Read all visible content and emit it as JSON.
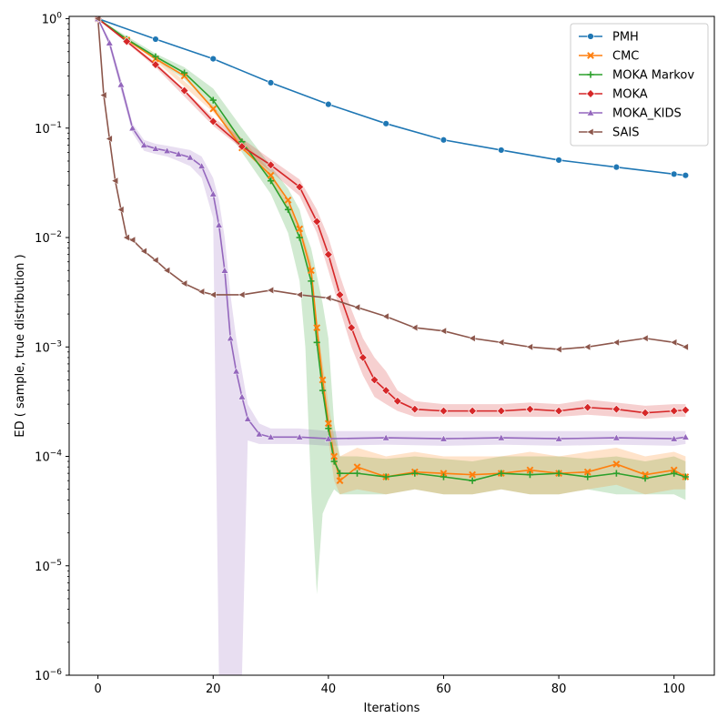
{
  "chart_data": {
    "type": "line",
    "title": "",
    "xlabel": "Iterations",
    "ylabel": "ED ( sample, true distribution )",
    "xlim": [
      -5,
      107
    ],
    "ylim": [
      1e-06,
      1.05
    ],
    "yscale": "log",
    "x_ticks": [
      0,
      20,
      40,
      60,
      80,
      100
    ],
    "y_ticks": [
      {
        "value": 1e-06,
        "base": "10",
        "exp": "−6"
      },
      {
        "value": 1e-05,
        "base": "10",
        "exp": "−5"
      },
      {
        "value": 0.0001,
        "base": "10",
        "exp": "−4"
      },
      {
        "value": 0.001,
        "base": "10",
        "exp": "−3"
      },
      {
        "value": 0.01,
        "base": "10",
        "exp": "−2"
      },
      {
        "value": 0.1,
        "base": "10",
        "exp": "−1"
      },
      {
        "value": 1,
        "base": "10",
        "exp": "0"
      }
    ],
    "grid": false,
    "legend_position": "top-right",
    "series": [
      {
        "name": "PMH",
        "color": "#1f77b4",
        "marker": "circle",
        "x": [
          0,
          10,
          20,
          30,
          40,
          50,
          60,
          70,
          80,
          90,
          100,
          102
        ],
        "y": [
          1.0,
          0.65,
          0.43,
          0.26,
          0.165,
          0.11,
          0.078,
          0.063,
          0.051,
          0.044,
          0.038,
          0.037
        ]
      },
      {
        "name": "CMC",
        "color": "#ff7f0e",
        "marker": "x",
        "x": [
          0,
          5,
          10,
          15,
          20,
          25,
          30,
          33,
          35,
          37,
          38,
          39,
          40,
          41,
          42,
          45,
          50,
          55,
          60,
          65,
          70,
          75,
          80,
          85,
          90,
          95,
          100,
          102
        ],
        "y": [
          1.0,
          0.64,
          0.43,
          0.3,
          0.15,
          0.066,
          0.037,
          0.022,
          0.012,
          0.005,
          0.0015,
          0.0005,
          0.0002,
          0.0001,
          6e-05,
          8e-05,
          6.5e-05,
          7.2e-05,
          7e-05,
          6.8e-05,
          7e-05,
          7.5e-05,
          7e-05,
          7.2e-05,
          8.5e-05,
          6.8e-05,
          7.5e-05,
          6.5e-05
        ]
      },
      {
        "name": "MOKA Markov",
        "color": "#2ca02c",
        "marker": "plus",
        "x": [
          0,
          5,
          10,
          15,
          20,
          25,
          30,
          33,
          35,
          37,
          38,
          39,
          40,
          41,
          42,
          45,
          50,
          55,
          60,
          65,
          70,
          75,
          80,
          85,
          90,
          95,
          100,
          102
        ],
        "y": [
          1.0,
          0.65,
          0.45,
          0.32,
          0.18,
          0.075,
          0.033,
          0.018,
          0.01,
          0.004,
          0.0011,
          0.0004,
          0.00018,
          9e-05,
          7e-05,
          7e-05,
          6.5e-05,
          7e-05,
          6.5e-05,
          6e-05,
          7e-05,
          6.8e-05,
          7e-05,
          6.5e-05,
          7e-05,
          6.3e-05,
          7e-05,
          6.5e-05
        ]
      },
      {
        "name": "MOKA",
        "color": "#d62728",
        "marker": "diamond",
        "x": [
          0,
          5,
          10,
          15,
          20,
          25,
          30,
          35,
          38,
          40,
          42,
          44,
          46,
          48,
          50,
          52,
          55,
          60,
          65,
          70,
          75,
          80,
          85,
          90,
          95,
          100,
          102
        ],
        "y": [
          1.0,
          0.62,
          0.38,
          0.22,
          0.115,
          0.068,
          0.046,
          0.029,
          0.014,
          0.007,
          0.003,
          0.0015,
          0.0008,
          0.0005,
          0.0004,
          0.00032,
          0.00027,
          0.00026,
          0.00026,
          0.00026,
          0.00027,
          0.00026,
          0.00028,
          0.00027,
          0.00025,
          0.00026,
          0.000265
        ]
      },
      {
        "name": "MOKA_KIDS",
        "color": "#9467bd",
        "marker": "triangle-up",
        "x": [
          0,
          2,
          4,
          6,
          8,
          10,
          12,
          14,
          16,
          18,
          20,
          21,
          22,
          23,
          24,
          25,
          26,
          28,
          30,
          35,
          40,
          50,
          60,
          70,
          80,
          90,
          100,
          102
        ],
        "y": [
          1.0,
          0.6,
          0.25,
          0.1,
          0.07,
          0.065,
          0.062,
          0.058,
          0.054,
          0.045,
          0.025,
          0.013,
          0.005,
          0.0012,
          0.0006,
          0.00035,
          0.00022,
          0.00016,
          0.00015,
          0.00015,
          0.000145,
          0.000148,
          0.000145,
          0.000148,
          0.000145,
          0.000148,
          0.000145,
          0.00015
        ]
      },
      {
        "name": "SAIS",
        "color": "#8c564b",
        "marker": "triangle-left",
        "x": [
          0,
          1,
          2,
          3,
          4,
          5,
          6,
          8,
          10,
          12,
          15,
          18,
          20,
          25,
          30,
          35,
          40,
          45,
          50,
          55,
          60,
          65,
          70,
          75,
          80,
          85,
          90,
          95,
          100,
          102
        ],
        "y": [
          1.0,
          0.2,
          0.08,
          0.033,
          0.018,
          0.01,
          0.0095,
          0.0075,
          0.0062,
          0.005,
          0.0038,
          0.0032,
          0.003,
          0.003,
          0.0033,
          0.003,
          0.0028,
          0.0023,
          0.0019,
          0.0015,
          0.0014,
          0.0012,
          0.0011,
          0.001,
          0.00095,
          0.001,
          0.0011,
          0.0012,
          0.0011,
          0.001
        ]
      }
    ],
    "bands": [
      {
        "series": "MOKA_KIDS",
        "color": "#9467bd",
        "x": [
          0,
          2,
          4,
          6,
          8,
          10,
          12,
          14,
          16,
          18,
          20,
          21,
          22,
          23,
          24,
          25,
          26,
          28,
          30,
          35,
          40,
          50,
          60,
          70,
          80,
          90,
          100,
          102
        ],
        "lower": [
          1.0,
          0.55,
          0.22,
          0.09,
          0.062,
          0.058,
          0.055,
          0.05,
          0.045,
          0.035,
          0.015,
          1e-06,
          1e-06,
          1e-06,
          1e-06,
          1e-06,
          0.00014,
          0.00013,
          0.00013,
          0.00013,
          0.000125,
          0.000128,
          0.000125,
          0.000128,
          0.000125,
          0.000128,
          0.000125,
          0.00013
        ],
        "upper": [
          1.0,
          0.65,
          0.28,
          0.11,
          0.078,
          0.072,
          0.069,
          0.066,
          0.063,
          0.055,
          0.035,
          0.022,
          0.01,
          0.003,
          0.0012,
          0.0006,
          0.0003,
          0.0002,
          0.00018,
          0.00018,
          0.00017,
          0.00017,
          0.00017,
          0.00017,
          0.00017,
          0.00017,
          0.00017,
          0.00017
        ]
      },
      {
        "series": "MOKA Markov",
        "color": "#2ca02c",
        "x": [
          0,
          10,
          15,
          20,
          25,
          30,
          33,
          35,
          36,
          37,
          38,
          39,
          40,
          41,
          42,
          45,
          50,
          55,
          60,
          65,
          70,
          75,
          80,
          85,
          90,
          95,
          100,
          102
        ],
        "lower": [
          1.0,
          0.42,
          0.28,
          0.15,
          0.06,
          0.025,
          0.011,
          0.004,
          0.001,
          5e-05,
          5.5e-06,
          3e-05,
          4e-05,
          5e-05,
          4.5e-05,
          4.5e-05,
          4.5e-05,
          5e-05,
          4.5e-05,
          4.5e-05,
          5e-05,
          4.5e-05,
          4.5e-05,
          5e-05,
          4.5e-05,
          4.5e-05,
          4.5e-05,
          4e-05
        ],
        "upper": [
          1.0,
          0.48,
          0.36,
          0.23,
          0.1,
          0.045,
          0.028,
          0.018,
          0.011,
          0.008,
          0.0045,
          0.0025,
          0.0012,
          0.0002,
          0.0001,
          0.0001,
          9.5e-05,
          0.0001,
          9.5e-05,
          9e-05,
          0.0001,
          0.0001,
          0.0001,
          9.5e-05,
          0.0001,
          9e-05,
          0.0001,
          9e-05
        ]
      },
      {
        "series": "CMC",
        "color": "#ff7f0e",
        "x": [
          0,
          10,
          20,
          30,
          35,
          37,
          38,
          39,
          40,
          41,
          42,
          45,
          50,
          55,
          60,
          65,
          70,
          75,
          80,
          85,
          90,
          95,
          100,
          102
        ],
        "lower": [
          1.0,
          0.41,
          0.14,
          0.034,
          0.011,
          0.004,
          0.0012,
          0.0004,
          0.00014,
          6e-05,
          4.5e-05,
          5e-05,
          4.5e-05,
          5e-05,
          4.5e-05,
          4.5e-05,
          5e-05,
          4.5e-05,
          4.5e-05,
          5e-05,
          5.5e-05,
          4.5e-05,
          5e-05,
          5e-05
        ],
        "upper": [
          1.0,
          0.45,
          0.16,
          0.04,
          0.013,
          0.006,
          0.0018,
          0.0007,
          0.0003,
          0.00015,
          0.0001,
          0.00012,
          0.0001,
          0.00011,
          0.0001,
          0.0001,
          0.0001,
          0.00011,
          0.0001,
          0.00011,
          0.00012,
          0.0001,
          0.00011,
          0.0001
        ]
      },
      {
        "series": "MOKA",
        "color": "#d62728",
        "x": [
          0,
          10,
          20,
          30,
          35,
          38,
          40,
          42,
          44,
          46,
          48,
          50,
          52,
          55,
          60,
          65,
          70,
          75,
          80,
          85,
          90,
          95,
          100,
          102
        ],
        "lower": [
          1.0,
          0.36,
          0.105,
          0.04,
          0.024,
          0.011,
          0.005,
          0.0022,
          0.001,
          0.00055,
          0.00035,
          0.0003,
          0.00026,
          0.00023,
          0.00023,
          0.00023,
          0.00023,
          0.00023,
          0.00023,
          0.00024,
          0.00023,
          0.00022,
          0.00023,
          0.00023
        ],
        "upper": [
          1.0,
          0.4,
          0.125,
          0.052,
          0.034,
          0.018,
          0.01,
          0.0045,
          0.0022,
          0.0012,
          0.0008,
          0.0006,
          0.0004,
          0.00032,
          0.0003,
          0.0003,
          0.0003,
          0.00031,
          0.0003,
          0.00033,
          0.00031,
          0.00029,
          0.0003,
          0.0003
        ]
      }
    ]
  }
}
